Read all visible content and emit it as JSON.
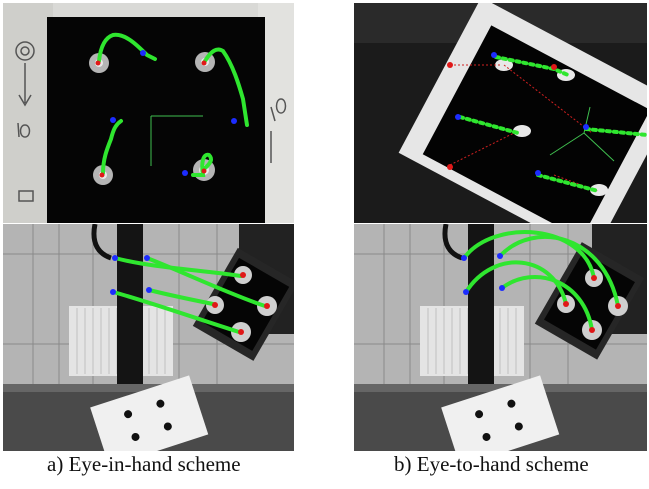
{
  "figure": {
    "captions": [
      {
        "label": "a) Eye-in-hand scheme"
      },
      {
        "label": "b) Eye-to-hand scheme"
      }
    ]
  }
}
